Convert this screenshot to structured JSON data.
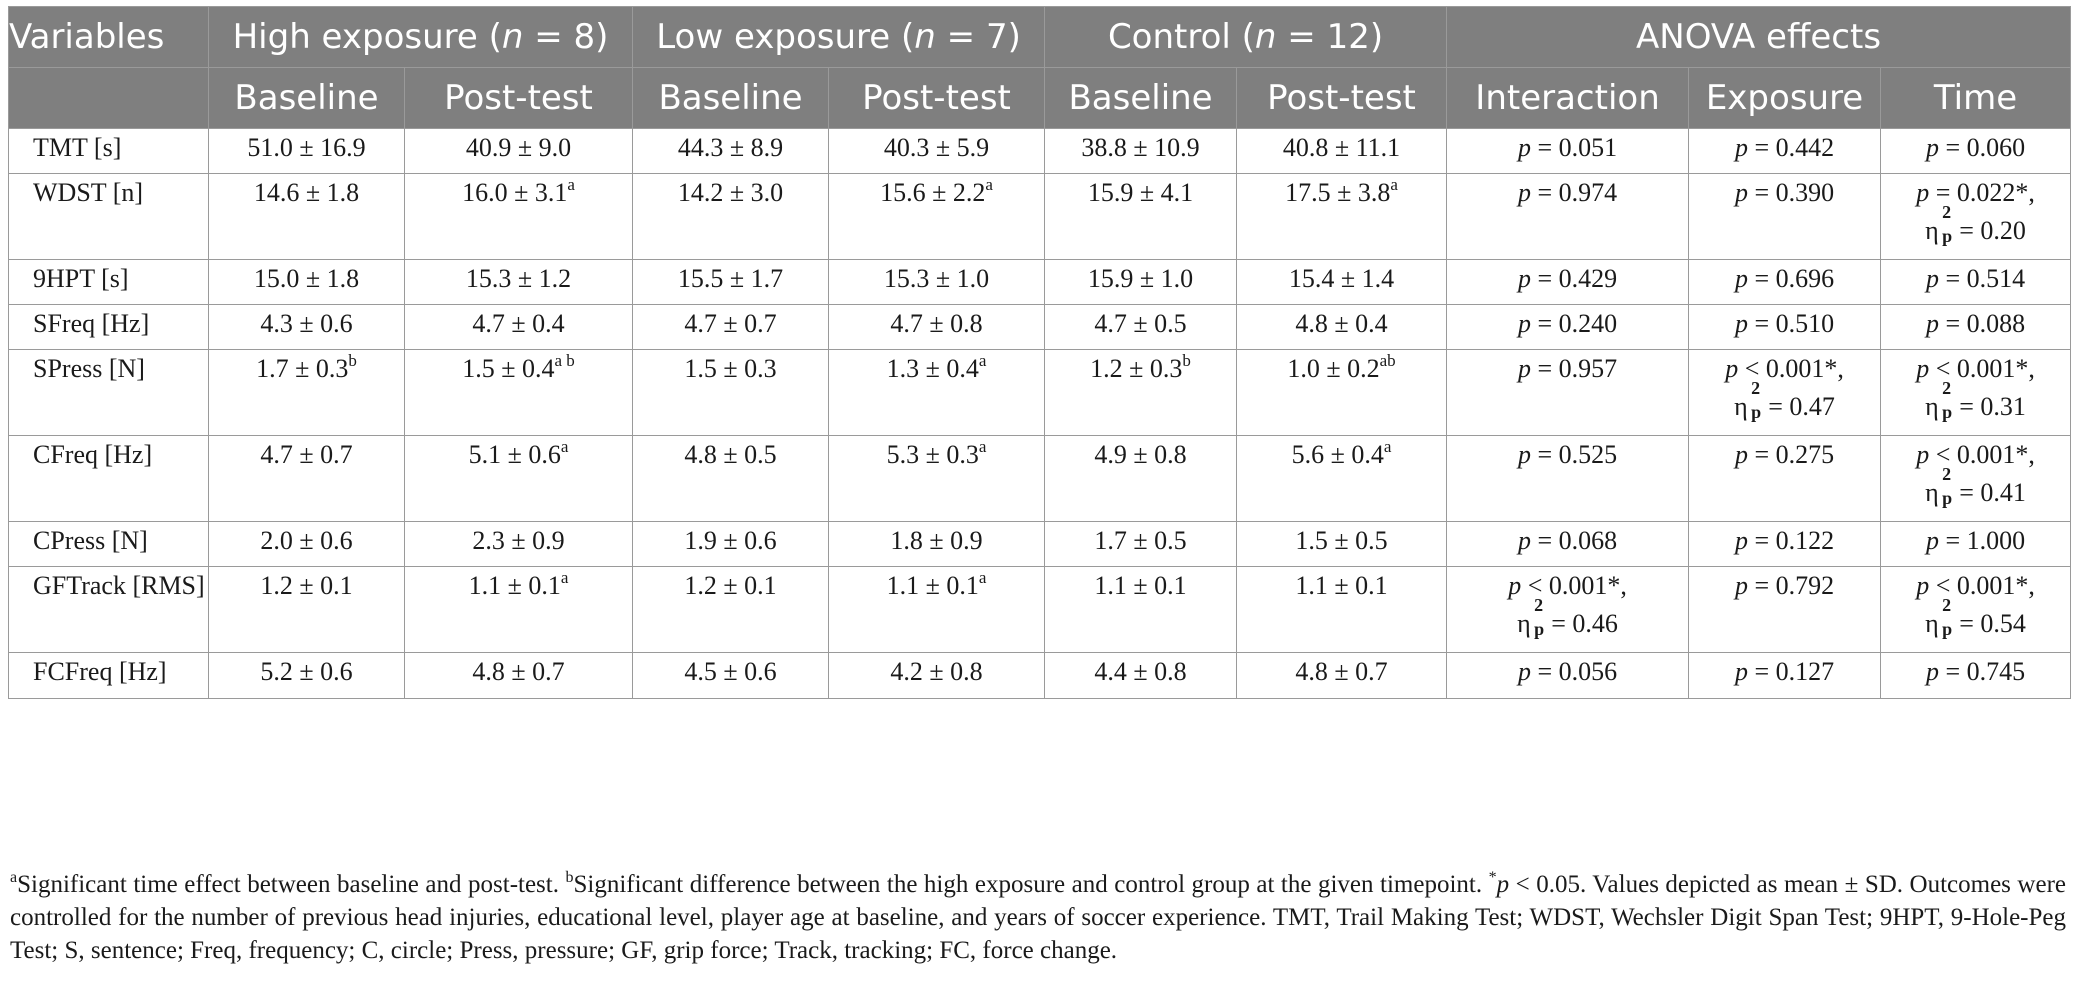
{
  "header": {
    "variables": "Variables",
    "groups": [
      {
        "pre": "High exposure (",
        "n": "n",
        "post": " = 8)"
      },
      {
        "pre": "Low exposure (",
        "n": "n",
        "post": " = 7)"
      },
      {
        "pre": "Control (",
        "n": "n",
        "post": " = 12)"
      }
    ],
    "anova": "ANOVA effects",
    "sub": [
      "Baseline",
      "Post-test",
      "Baseline",
      "Post-test",
      "Baseline",
      "Post-test",
      "Interaction",
      "Exposure",
      "Time"
    ]
  },
  "eta": {
    "symbol": "η",
    "sup": "2",
    "sub": "p"
  },
  "rows": [
    {
      "label": "TMT [s]",
      "size": "s1",
      "cells": [
        {
          "v": "51.0 ± 16.9"
        },
        {
          "v": "40.9 ± 9.0"
        },
        {
          "v": "44.3 ± 8.9"
        },
        {
          "v": "40.3 ± 5.9"
        },
        {
          "v": "38.8 ± 10.9"
        },
        {
          "v": "40.8 ± 11.1"
        }
      ],
      "anova": [
        {
          "p": "p",
          "v": " = 0.051"
        },
        {
          "p": "p",
          "v": " = 0.442"
        },
        {
          "p": "p",
          "v": " = 0.060"
        }
      ]
    },
    {
      "label": "WDST [n]",
      "size": "s2",
      "cells": [
        {
          "v": "14.6 ± 1.8"
        },
        {
          "v": "16.0 ± 3.1",
          "sup": "a"
        },
        {
          "v": "14.2 ± 3.0"
        },
        {
          "v": "15.6 ± 2.2",
          "sup": "a"
        },
        {
          "v": "15.9 ± 4.1"
        },
        {
          "v": "17.5 ± 3.8",
          "sup": "a"
        }
      ],
      "anova": [
        {
          "p": "p",
          "v": " = 0.974"
        },
        {
          "p": "p",
          "v": " = 0.390"
        },
        {
          "p": "p",
          "v": " = 0.022*,",
          "eta": " = 0.20"
        }
      ]
    },
    {
      "label": "9HPT [s]",
      "size": "s1",
      "cells": [
        {
          "v": "15.0 ± 1.8"
        },
        {
          "v": "15.3 ± 1.2"
        },
        {
          "v": "15.5 ± 1.7"
        },
        {
          "v": "15.3 ± 1.0"
        },
        {
          "v": "15.9 ± 1.0"
        },
        {
          "v": "15.4 ± 1.4"
        }
      ],
      "anova": [
        {
          "p": "p",
          "v": " = 0.429"
        },
        {
          "p": "p",
          "v": " = 0.696"
        },
        {
          "p": "p",
          "v": " = 0.514"
        }
      ]
    },
    {
      "label": "SFreq [Hz]",
      "size": "s1",
      "cells": [
        {
          "v": "4.3 ± 0.6"
        },
        {
          "v": "4.7 ± 0.4"
        },
        {
          "v": "4.7 ± 0.7"
        },
        {
          "v": "4.7 ± 0.8"
        },
        {
          "v": "4.7 ± 0.5"
        },
        {
          "v": "4.8 ± 0.4"
        }
      ],
      "anova": [
        {
          "p": "p",
          "v": " = 0.240"
        },
        {
          "p": "p",
          "v": " = 0.510"
        },
        {
          "p": "p",
          "v": " = 0.088"
        }
      ]
    },
    {
      "label": "SPress [N]",
      "size": "s2",
      "cells": [
        {
          "v": "1.7 ± 0.3",
          "sup": "b"
        },
        {
          "v": "1.5 ± 0.4",
          "sup": "a b"
        },
        {
          "v": "1.5 ± 0.3"
        },
        {
          "v": "1.3 ± 0.4",
          "sup": "a"
        },
        {
          "v": "1.2 ± 0.3",
          "sup": "b"
        },
        {
          "v": "1.0 ± 0.2",
          "sup": "ab"
        }
      ],
      "anova": [
        {
          "p": "p",
          "v": " = 0.957"
        },
        {
          "p": "p",
          "v": " < 0.001*,",
          "eta": " = 0.47"
        },
        {
          "p": "p",
          "v": " < 0.001*,",
          "eta": " = 0.31"
        }
      ]
    },
    {
      "label": "CFreq [Hz]",
      "size": "s2",
      "cells": [
        {
          "v": "4.7 ± 0.7"
        },
        {
          "v": "5.1 ± 0.6",
          "sup": "a"
        },
        {
          "v": "4.8 ± 0.5"
        },
        {
          "v": "5.3 ± 0.3",
          "sup": "a"
        },
        {
          "v": "4.9 ± 0.8"
        },
        {
          "v": "5.6 ± 0.4",
          "sup": "a"
        }
      ],
      "anova": [
        {
          "p": "p",
          "v": " = 0.525"
        },
        {
          "p": "p",
          "v": " = 0.275"
        },
        {
          "p": "p",
          "v": " < 0.001*,",
          "eta": " = 0.41"
        }
      ]
    },
    {
      "label": "CPress [N]",
      "size": "s1",
      "cells": [
        {
          "v": "2.0 ± 0.6"
        },
        {
          "v": "2.3 ± 0.9"
        },
        {
          "v": "1.9 ± 0.6"
        },
        {
          "v": "1.8 ± 0.9"
        },
        {
          "v": "1.7 ± 0.5"
        },
        {
          "v": "1.5 ± 0.5"
        }
      ],
      "anova": [
        {
          "p": "p",
          "v": " = 0.068"
        },
        {
          "p": "p",
          "v": " = 0.122"
        },
        {
          "p": "p",
          "v": " = 1.000"
        }
      ]
    },
    {
      "label": "GFTrack [RMS]",
      "size": "s2",
      "cells": [
        {
          "v": "1.2 ± 0.1"
        },
        {
          "v": "1.1 ± 0.1",
          "sup": "a"
        },
        {
          "v": "1.2 ± 0.1"
        },
        {
          "v": "1.1 ± 0.1",
          "sup": "a"
        },
        {
          "v": "1.1 ± 0.1"
        },
        {
          "v": "1.1 ± 0.1"
        }
      ],
      "anova": [
        {
          "p": "p",
          "v": " < 0.001*,",
          "eta": " = 0.46"
        },
        {
          "p": "p",
          "v": " = 0.792"
        },
        {
          "p": "p",
          "v": " < 0.001*,",
          "eta": " = 0.54"
        }
      ]
    },
    {
      "label": "FCFreq [Hz]",
      "size": "s1b",
      "cells": [
        {
          "v": "5.2 ± 0.6"
        },
        {
          "v": "4.8 ± 0.7"
        },
        {
          "v": "4.5 ± 0.6"
        },
        {
          "v": "4.2 ± 0.8"
        },
        {
          "v": "4.4 ± 0.8"
        },
        {
          "v": "4.8 ± 0.7"
        }
      ],
      "anova": [
        {
          "p": "p",
          "v": " = 0.056"
        },
        {
          "p": "p",
          "v": " = 0.127"
        },
        {
          "p": "p",
          "v": " = 0.745"
        }
      ]
    }
  ],
  "footnote": {
    "a_mark": "a",
    "a_text": "Significant time effect between baseline and post-test. ",
    "b_mark": "b",
    "b_text": "Significant difference between the high exposure and control group at the given timepoint. ",
    "star": "*",
    "p": "p",
    "rest": " < 0.05. Values depicted as mean ± SD. Outcomes were controlled for the number of previous head injuries, educational level, player age at baseline, and years of soccer experience. TMT, Trail Making Test; WDST, Wechsler Digit Span Test; 9HPT, 9-Hole-Peg Test; S, sentence; Freq, frequency; C, circle; Press, pressure; GF, grip force; Track, tracking; FC, force change."
  }
}
